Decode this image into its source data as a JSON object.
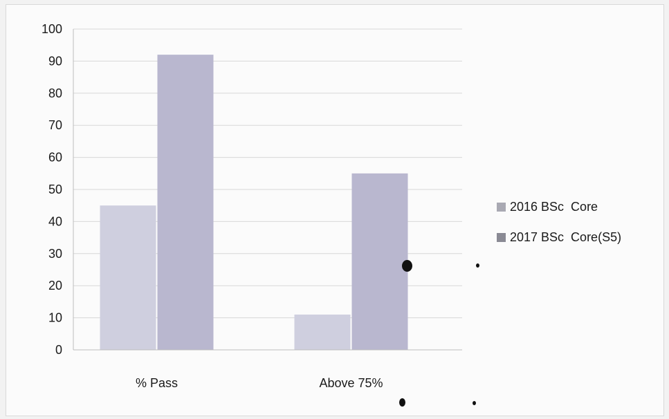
{
  "chart_data": {
    "type": "bar",
    "categories": [
      "% Pass",
      "Above 75%"
    ],
    "series": [
      {
        "name": "2016 BSc  Core",
        "values": [
          45,
          11
        ],
        "color": "#cfcfdf"
      },
      {
        "name": "2017 BSc  Core(S5)",
        "values": [
          92,
          55
        ],
        "color": "#b9b7cf"
      }
    ],
    "title": "",
    "xlabel": "",
    "ylabel": "",
    "ylim": [
      0,
      100
    ],
    "yticks": [
      0,
      10,
      20,
      30,
      40,
      50,
      60,
      70,
      80,
      90,
      100
    ],
    "grid": true,
    "legend_position": "right"
  },
  "colors": {
    "gridline": "#d7d7d7",
    "axis": "#bdbdbd",
    "background": "#fbfbfb"
  }
}
